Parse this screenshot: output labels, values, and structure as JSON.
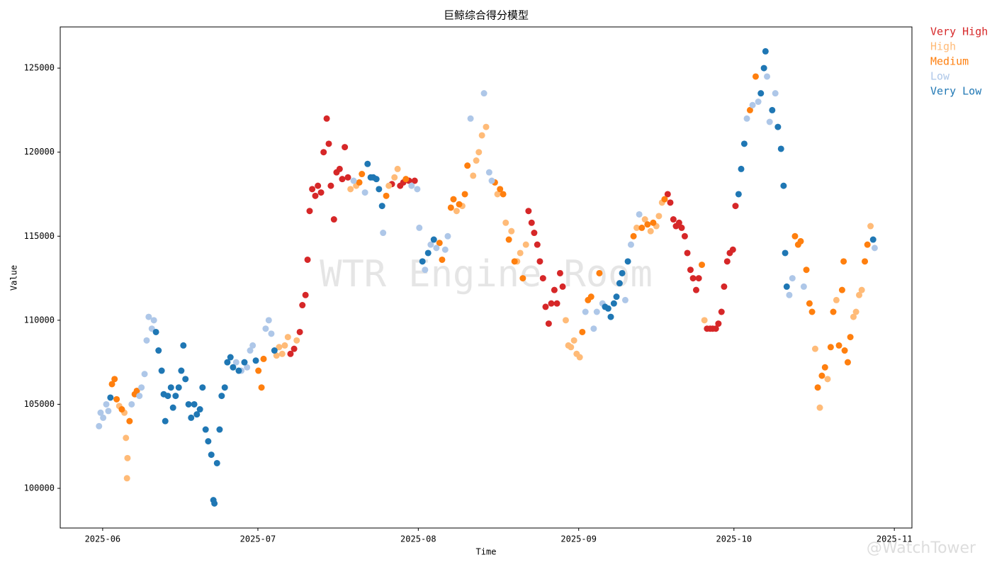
{
  "chart_data": {
    "type": "scatter",
    "title": "巨鲸综合得分模型",
    "x_label": "Time",
    "y_label": "Value",
    "annotations": [
      "WTR Engine Room",
      "@WatchTower"
    ],
    "legend_loc": "outside upper right",
    "xlim": [
      143.8,
      308.4
    ],
    "xticks": [
      {
        "value": 152,
        "label": "2025-06"
      },
      {
        "value": 182,
        "label": "2025-07"
      },
      {
        "value": 213,
        "label": "2025-08"
      },
      {
        "value": 244,
        "label": "2025-09"
      },
      {
        "value": 274,
        "label": "2025-10"
      },
      {
        "value": 305,
        "label": "2025-11"
      }
    ],
    "ylim": [
      97640,
      127450
    ],
    "yticks": [
      100000,
      105000,
      110000,
      115000,
      120000,
      125000
    ],
    "grid": false,
    "series": [
      {
        "name": "Very High",
        "color": "#d62728",
        "x": [
          188.3,
          189.0,
          190.1,
          190.6,
          191.2,
          191.6,
          192.0,
          192.5,
          193.1,
          193.6,
          194.2,
          194.7,
          195.3,
          195.7,
          196.1,
          196.7,
          197.2,
          197.8,
          198.3,
          198.8,
          199.4,
          207.9,
          209.5,
          210.1,
          211.2,
          212.3,
          234.3,
          234.9,
          235.4,
          236.0,
          236.5,
          237.1,
          237.6,
          238.2,
          238.7,
          239.3,
          239.8,
          240.4,
          240.9,
          261.2,
          261.7,
          262.3,
          262.8,
          263.4,
          263.9,
          264.5,
          265.0,
          265.6,
          266.1,
          266.7,
          267.2,
          268.8,
          269.4,
          269.9,
          270.5,
          271.0,
          271.6,
          272.1,
          272.7,
          273.2,
          273.8,
          274.3
        ],
        "values": [
          108000,
          108300,
          109300,
          110900,
          111500,
          113600,
          116500,
          117800,
          117400,
          118000,
          117600,
          120000,
          122000,
          120500,
          118000,
          116000,
          118800,
          119000,
          118400,
          120300,
          118500,
          118100,
          118000,
          118200,
          118300,
          118300,
          116500,
          115800,
          115200,
          114500,
          113500,
          112500,
          110800,
          109800,
          111000,
          111800,
          111000,
          112800,
          112000,
          117500,
          117000,
          116000,
          115600,
          115800,
          115500,
          115000,
          114000,
          113000,
          112500,
          111800,
          112500,
          109500,
          109500,
          109500,
          109500,
          109800,
          110500,
          112000,
          113500,
          114000,
          114200,
          116800
        ]
      },
      {
        "name": "High",
        "color": "#ffbb78",
        "x": [
          155.2,
          156.2,
          156.5,
          156.8,
          156.7,
          185.6,
          186.1,
          186.7,
          187.2,
          187.8,
          189.5,
          199.9,
          201.0,
          207.3,
          208.4,
          209.0,
          220.4,
          221.5,
          223.6,
          224.2,
          224.7,
          225.3,
          226.1,
          228.3,
          229.9,
          231.0,
          232.1,
          232.7,
          233.8,
          241.5,
          242.0,
          242.5,
          243.1,
          243.6,
          244.2,
          255.2,
          256.8,
          257.9,
          259.0,
          259.5,
          260.1,
          268.3,
          289.7,
          290.6,
          292.1,
          293.8,
          297.1,
          297.6,
          298.2,
          298.7,
          300.4
        ],
        "values": [
          104900,
          104500,
          103000,
          101800,
          100600,
          107900,
          108400,
          108000,
          108500,
          109000,
          108800,
          117800,
          118000,
          118000,
          118500,
          119000,
          116500,
          116800,
          118600,
          119500,
          120000,
          121000,
          121500,
          117500,
          115800,
          115300,
          113500,
          114000,
          114500,
          110000,
          108500,
          108400,
          108800,
          108000,
          107800,
          115500,
          116000,
          115300,
          115600,
          116200,
          117000,
          110000,
          108300,
          104800,
          106500,
          111200,
          110200,
          110500,
          111500,
          111800,
          115600
        ]
      },
      {
        "name": "Medium",
        "color": "#ff7f0e",
        "x": [
          153.8,
          154.3,
          154.7,
          155.7,
          157.2,
          158.2,
          158.6,
          182.1,
          182.7,
          183.1,
          201.6,
          202.1,
          206.8,
          210.6,
          217.1,
          217.6,
          219.3,
          219.8,
          220.9,
          222.0,
          222.5,
          227.8,
          228.8,
          229.4,
          230.5,
          231.6,
          233.2,
          244.7,
          245.8,
          246.4,
          248.0,
          254.6,
          256.2,
          257.3,
          258.4,
          260.6,
          267.8,
          277.1,
          278.2,
          285.8,
          286.4,
          286.9,
          288.0,
          288.6,
          289.1,
          290.2,
          291.0,
          291.6,
          292.7,
          293.2,
          294.3,
          294.9,
          295.2,
          295.4,
          296.0,
          296.5,
          299.3,
          299.8
        ],
        "values": [
          106200,
          106500,
          105300,
          104700,
          104000,
          105600,
          105800,
          107000,
          106000,
          107700,
          118200,
          118700,
          117400,
          118400,
          114600,
          113600,
          116700,
          117200,
          116900,
          117500,
          119200,
          118200,
          117800,
          117500,
          114800,
          113500,
          112500,
          109300,
          111200,
          111400,
          112800,
          115000,
          115500,
          115700,
          115800,
          117200,
          113300,
          122500,
          124500,
          115000,
          114500,
          114700,
          113000,
          111000,
          110500,
          106000,
          106700,
          107200,
          108400,
          110500,
          108500,
          111800,
          113500,
          108200,
          107500,
          109000,
          113500,
          114500
        ]
      },
      {
        "name": "Low",
        "color": "#aec7e8",
        "x": [
          151.3,
          151.6,
          152.1,
          152.7,
          153.1,
          157.6,
          159.1,
          159.5,
          160.1,
          160.5,
          160.9,
          161.5,
          161.9,
          177.8,
          178.8,
          179.9,
          180.5,
          181.0,
          183.5,
          184.1,
          184.6,
          200.5,
          202.7,
          206.2,
          211.7,
          212.8,
          213.2,
          214.3,
          215.4,
          216.5,
          218.2,
          218.7,
          223.1,
          225.7,
          226.7,
          227.2,
          245.3,
          246.9,
          247.5,
          248.6,
          253.0,
          254.1,
          255.7,
          276.5,
          277.6,
          278.7,
          280.4,
          280.9,
          282.0,
          284.7,
          285.3,
          287.5,
          301.2
        ],
        "values": [
          103700,
          104500,
          104200,
          105000,
          104600,
          105000,
          105500,
          106000,
          106800,
          108800,
          110200,
          109500,
          110000,
          107500,
          107000,
          107200,
          108200,
          108500,
          109500,
          110000,
          109200,
          118300,
          117600,
          115200,
          118000,
          117800,
          115500,
          113000,
          114500,
          114300,
          114200,
          115000,
          122000,
          123500,
          118800,
          118300,
          110500,
          109500,
          110500,
          111000,
          111200,
          114500,
          116300,
          122000,
          122800,
          123000,
          124500,
          121800,
          123500,
          111500,
          112500,
          112000,
          114300
        ]
      },
      {
        "name": "Very Low",
        "color": "#1f77b4",
        "x": [
          153.5,
          162.3,
          162.8,
          163.4,
          163.8,
          164.1,
          164.6,
          165.2,
          165.6,
          166.1,
          166.7,
          167.2,
          167.6,
          168.0,
          168.6,
          169.1,
          169.7,
          170.2,
          170.8,
          171.3,
          171.9,
          172.4,
          173.0,
          173.4,
          173.6,
          174.1,
          174.6,
          175.0,
          175.6,
          176.1,
          176.7,
          177.2,
          178.3,
          179.4,
          181.6,
          185.2,
          203.2,
          203.8,
          204.3,
          204.9,
          205.4,
          206.0,
          213.8,
          214.9,
          216.0,
          249.1,
          249.7,
          250.2,
          250.8,
          251.3,
          251.9,
          252.4,
          253.5,
          274.9,
          275.4,
          276.0,
          279.2,
          279.8,
          280.1,
          281.4,
          282.5,
          283.1,
          283.6,
          283.9,
          284.2,
          300.9
        ],
        "values": [
          105400,
          109300,
          108200,
          107000,
          105600,
          104000,
          105500,
          106000,
          104800,
          105500,
          106000,
          107000,
          108500,
          106500,
          105000,
          104200,
          105000,
          104400,
          104700,
          106000,
          103500,
          102800,
          102000,
          99300,
          99100,
          101500,
          103500,
          105500,
          106000,
          107500,
          107800,
          107200,
          107000,
          107500,
          107600,
          108200,
          119300,
          118500,
          118500,
          118400,
          117800,
          116800,
          113500,
          114000,
          114800,
          110800,
          110700,
          110200,
          111000,
          111400,
          112200,
          112800,
          113500,
          117500,
          119000,
          120500,
          123500,
          125000,
          126000,
          122500,
          121500,
          120200,
          118000,
          114000,
          112000,
          114800
        ]
      }
    ]
  }
}
